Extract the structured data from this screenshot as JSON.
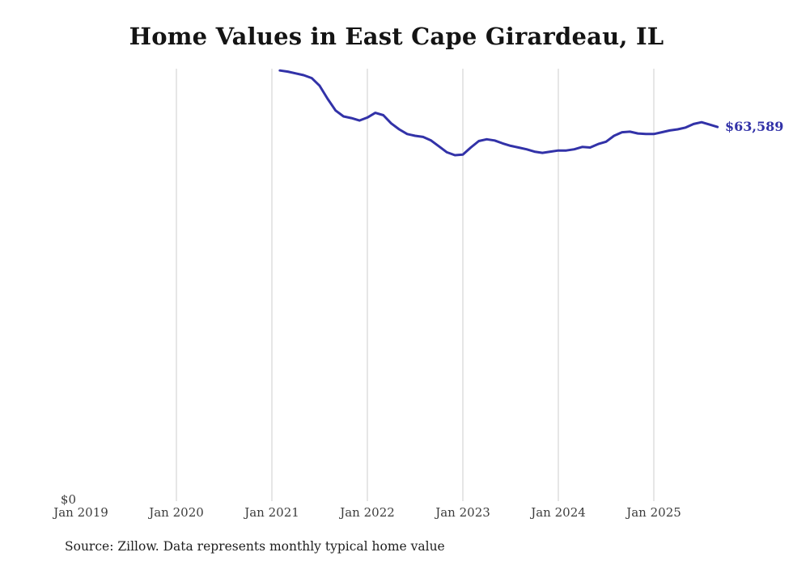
{
  "chart_data": {
    "type": "line",
    "title": "Home Values in East Cape Girardeau, IL",
    "source_note": "Source: Zillow. Data represents monthly typical home value",
    "x_tick_labels": [
      "Jan 2019",
      "Jan 2020",
      "Jan 2021",
      "Jan 2022",
      "Jan 2023",
      "Jan 2024",
      "Jan 2025"
    ],
    "y_tick_labels": [
      "$0"
    ],
    "ylim": [
      0,
      73500
    ],
    "grid": "vertical-gridlines-at-each-january",
    "legend": "none",
    "line_color": "#3232a8",
    "gridline_color": "#cccccc",
    "end_label": "$63,589",
    "end_value": 63589,
    "series": [
      {
        "name": "Monthly typical home value",
        "points": [
          [
            "2021-02",
            73200
          ],
          [
            "2021-03",
            73000
          ],
          [
            "2021-04",
            72700
          ],
          [
            "2021-05",
            72400
          ],
          [
            "2021-06",
            71900
          ],
          [
            "2021-07",
            70600
          ],
          [
            "2021-08",
            68400
          ],
          [
            "2021-09",
            66400
          ],
          [
            "2021-10",
            65400
          ],
          [
            "2021-11",
            65100
          ],
          [
            "2021-12",
            64700
          ],
          [
            "2022-01",
            65200
          ],
          [
            "2022-02",
            66000
          ],
          [
            "2022-03",
            65600
          ],
          [
            "2022-04",
            64200
          ],
          [
            "2022-05",
            63200
          ],
          [
            "2022-06",
            62400
          ],
          [
            "2022-07",
            62100
          ],
          [
            "2022-08",
            61900
          ],
          [
            "2022-09",
            61300
          ],
          [
            "2022-10",
            60300
          ],
          [
            "2022-11",
            59300
          ],
          [
            "2022-12",
            58800
          ],
          [
            "2023-01",
            58900
          ],
          [
            "2023-02",
            60100
          ],
          [
            "2023-03",
            61200
          ],
          [
            "2023-04",
            61500
          ],
          [
            "2023-05",
            61300
          ],
          [
            "2023-06",
            60800
          ],
          [
            "2023-07",
            60400
          ],
          [
            "2023-08",
            60100
          ],
          [
            "2023-09",
            59800
          ],
          [
            "2023-10",
            59400
          ],
          [
            "2023-11",
            59200
          ],
          [
            "2023-12",
            59400
          ],
          [
            "2024-01",
            59600
          ],
          [
            "2024-02",
            59600
          ],
          [
            "2024-03",
            59800
          ],
          [
            "2024-04",
            60200
          ],
          [
            "2024-05",
            60100
          ],
          [
            "2024-06",
            60700
          ],
          [
            "2024-07",
            61100
          ],
          [
            "2024-08",
            62100
          ],
          [
            "2024-09",
            62700
          ],
          [
            "2024-10",
            62800
          ],
          [
            "2024-11",
            62500
          ],
          [
            "2024-12",
            62400
          ],
          [
            "2025-01",
            62400
          ],
          [
            "2025-02",
            62700
          ],
          [
            "2025-03",
            63000
          ],
          [
            "2025-04",
            63200
          ],
          [
            "2025-05",
            63500
          ],
          [
            "2025-06",
            64100
          ],
          [
            "2025-07",
            64400
          ],
          [
            "2025-08",
            64000
          ],
          [
            "2025-09",
            63589
          ]
        ]
      }
    ]
  }
}
